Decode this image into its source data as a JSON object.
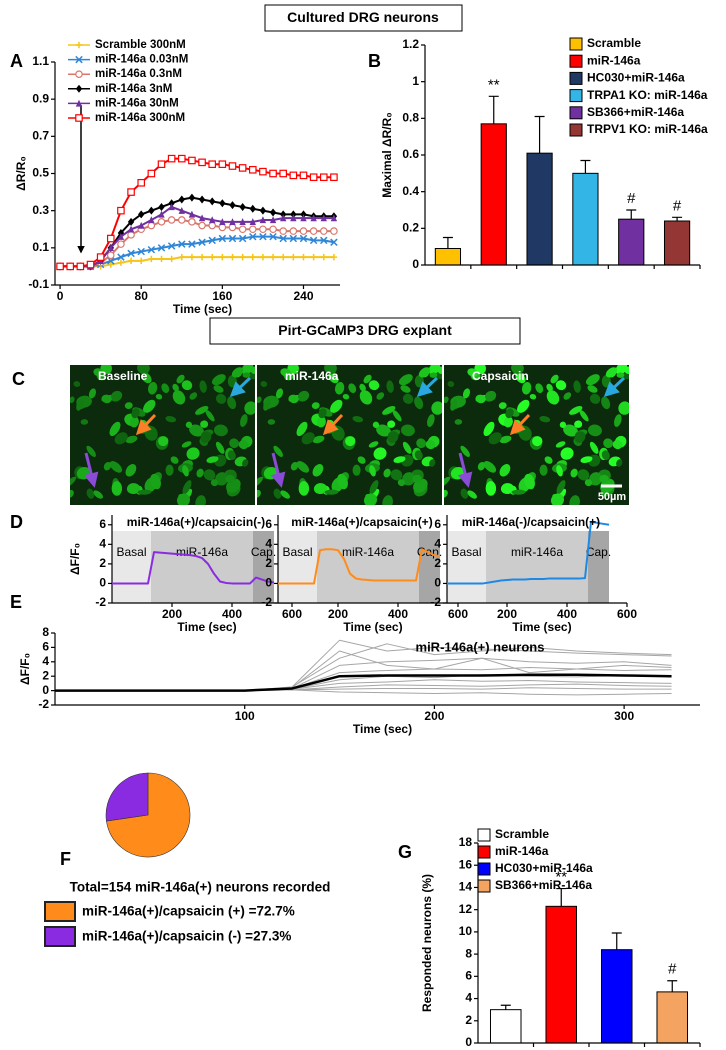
{
  "headers": [
    "Cultured DRG neurons",
    "Pirt-GCaMP3 DRG explant"
  ],
  "images": {
    "label": "C",
    "panels": [
      "Baseline",
      "miR-146a",
      "Capsaicin"
    ],
    "scale_bar": "50µm"
  },
  "chart_data": [
    {
      "type": "line",
      "label": "A",
      "xlabel": "Time (sec)",
      "ylabel": "ΔR/R₀",
      "xlim": [
        -5,
        276
      ],
      "xticks": [
        0,
        80,
        160,
        240
      ],
      "ylim": [
        -0.1,
        1.1
      ],
      "yticks": [
        -0.1,
        0.1,
        0.3,
        0.5,
        0.7,
        0.9,
        1.1
      ],
      "legend": "upper left",
      "x": [
        0,
        10,
        20,
        30,
        40,
        50,
        60,
        70,
        80,
        90,
        100,
        110,
        120,
        130,
        140,
        150,
        160,
        170,
        180,
        190,
        200,
        210,
        220,
        230,
        240,
        250,
        260,
        270
      ],
      "series": [
        {
          "name": "Scramble 300nM",
          "color": "#f5c518",
          "marker": "plus",
          "values": [
            0,
            0,
            0,
            0,
            0,
            0.01,
            0.02,
            0.03,
            0.03,
            0.04,
            0.04,
            0.04,
            0.05,
            0.05,
            0.05,
            0.05,
            0.05,
            0.05,
            0.05,
            0.05,
            0.05,
            0.05,
            0.05,
            0.05,
            0.05,
            0.05,
            0.05,
            0.05
          ]
        },
        {
          "name": "miR-146a 0.03nM",
          "color": "#2f86d6",
          "marker": "x",
          "values": [
            0,
            0,
            0,
            0,
            0.01,
            0.03,
            0.05,
            0.07,
            0.08,
            0.09,
            0.1,
            0.11,
            0.12,
            0.12,
            0.13,
            0.14,
            0.15,
            0.15,
            0.15,
            0.16,
            0.16,
            0.16,
            0.15,
            0.15,
            0.15,
            0.14,
            0.14,
            0.13
          ]
        },
        {
          "name": "miR-146a 0.3nM",
          "color": "#d9776c",
          "marker": "circle",
          "values": [
            0,
            0,
            0,
            0,
            0.02,
            0.06,
            0.12,
            0.17,
            0.2,
            0.22,
            0.24,
            0.25,
            0.25,
            0.24,
            0.22,
            0.22,
            0.21,
            0.21,
            0.2,
            0.2,
            0.2,
            0.2,
            0.19,
            0.19,
            0.19,
            0.19,
            0.19,
            0.19
          ]
        },
        {
          "name": "miR-146a 3nM",
          "color": "#000000",
          "marker": "diamond",
          "values": [
            0,
            0,
            0,
            0,
            0.03,
            0.1,
            0.18,
            0.24,
            0.28,
            0.3,
            0.32,
            0.34,
            0.36,
            0.37,
            0.36,
            0.35,
            0.34,
            0.33,
            0.32,
            0.31,
            0.3,
            0.29,
            0.28,
            0.28,
            0.28,
            0.27,
            0.27,
            0.27
          ]
        },
        {
          "name": "miR-146a 30nM",
          "color": "#7030a0",
          "marker": "triangle",
          "values": [
            0,
            0,
            0,
            0,
            0.03,
            0.1,
            0.16,
            0.2,
            0.22,
            0.25,
            0.28,
            0.32,
            0.3,
            0.28,
            0.26,
            0.25,
            0.24,
            0.24,
            0.24,
            0.24,
            0.25,
            0.25,
            0.26,
            0.26,
            0.26,
            0.26,
            0.26,
            0.26
          ]
        },
        {
          "name": "miR-146a 300nM",
          "color": "#ff0000",
          "marker": "square",
          "values": [
            0,
            0,
            0,
            0.01,
            0.05,
            0.15,
            0.3,
            0.4,
            0.45,
            0.5,
            0.55,
            0.58,
            0.58,
            0.57,
            0.56,
            0.55,
            0.55,
            0.54,
            0.53,
            0.52,
            0.51,
            0.5,
            0.5,
            0.49,
            0.49,
            0.48,
            0.48,
            0.48
          ]
        }
      ]
    },
    {
      "type": "bar",
      "label": "B",
      "ylabel": "Maximal ΔR/R₀",
      "categories": [
        "Scramble",
        "miR-146a",
        "HC030+miR-146a",
        "TRPA1 KO: miR-146a",
        "SB366+miR-146a",
        "TRPV1 KO: miR-146a"
      ],
      "values": [
        0.09,
        0.77,
        0.61,
        0.5,
        0.25,
        0.24
      ],
      "errors": [
        0.06,
        0.15,
        0.2,
        0.07,
        0.05,
        0.02
      ],
      "colors": [
        "#ffc000",
        "#ff0000",
        "#1f3864",
        "#33b5e5",
        "#7030a0",
        "#943634"
      ],
      "ylim": [
        0,
        1.2
      ],
      "yticks": [
        0,
        0.2,
        0.4,
        0.6,
        0.8,
        1,
        1.2
      ],
      "legend": "upper right",
      "annotations": [
        {
          "at": "miR-146a",
          "text": "**"
        },
        {
          "at": "SB366+miR-146a",
          "text": "#"
        },
        {
          "at": "TRPV1 KO: miR-146a",
          "text": "#"
        }
      ]
    },
    {
      "type": "line",
      "label": "D",
      "title": "miR-146a(+)/capsaicin(-)",
      "xlabel": "Time (sec)",
      "ylabel": "ΔF/F₀",
      "xlim": [
        0,
        600
      ],
      "xticks": [
        200,
        400,
        600
      ],
      "ylim": [
        -2,
        7
      ],
      "yticks": [
        -2,
        0,
        2,
        4,
        6
      ],
      "regions": [
        {
          "label": "Basal",
          "start": 0,
          "end": 130,
          "color": "#e8e8e8"
        },
        {
          "label": "miR-146a",
          "start": 130,
          "end": 470,
          "color": "#cccccc"
        },
        {
          "label": "Cap.",
          "start": 470,
          "end": 540,
          "color": "#a6a6a6"
        }
      ],
      "x": [
        0,
        20,
        40,
        60,
        80,
        100,
        120,
        140,
        160,
        180,
        200,
        220,
        240,
        260,
        280,
        300,
        320,
        340,
        360,
        380,
        400,
        420,
        440,
        460,
        480,
        500,
        520,
        540
      ],
      "series": [
        {
          "color": "#8a2be2",
          "values": [
            0,
            0,
            0,
            0,
            0,
            0,
            0,
            3.2,
            3.15,
            3.1,
            3.05,
            3.0,
            2.95,
            2.9,
            2.8,
            2.6,
            2.0,
            1.0,
            0.2,
            0.05,
            0,
            0,
            0,
            0,
            0.6,
            0.4,
            0.2,
            0.1
          ]
        }
      ]
    },
    {
      "type": "line",
      "title": "miR-146a(+)/capsaicin(+)",
      "xlabel": "Time (sec)",
      "xlim": [
        0,
        600
      ],
      "xticks": [
        200,
        400,
        600
      ],
      "ylim": [
        -2,
        7
      ],
      "yticks": [
        -2,
        0,
        2,
        4,
        6
      ],
      "regions": [
        {
          "label": "Basal",
          "start": 0,
          "end": 130,
          "color": "#e8e8e8"
        },
        {
          "label": "miR-146a",
          "start": 130,
          "end": 470,
          "color": "#cccccc"
        },
        {
          "label": "Cap.",
          "start": 470,
          "end": 540,
          "color": "#a6a6a6"
        }
      ],
      "x": [
        0,
        20,
        40,
        60,
        80,
        100,
        120,
        140,
        160,
        180,
        200,
        220,
        240,
        260,
        280,
        300,
        320,
        340,
        360,
        380,
        400,
        420,
        440,
        460,
        480,
        500,
        520,
        540
      ],
      "series": [
        {
          "color": "#ff8c1a",
          "values": [
            0,
            0,
            0,
            0,
            0,
            0,
            0,
            3.4,
            3.5,
            3.5,
            3.4,
            2.5,
            1.0,
            0.5,
            0.4,
            0.35,
            0.3,
            0.3,
            0.3,
            0.3,
            0.3,
            0.3,
            0.3,
            0.3,
            3.5,
            3.2,
            2.9,
            2.8
          ]
        }
      ]
    },
    {
      "type": "line",
      "title": "miR-146a(-)/capsaicin(+)",
      "xlabel": "Time (sec)",
      "xlim": [
        0,
        600
      ],
      "xticks": [
        200,
        400,
        600
      ],
      "ylim": [
        -2,
        7
      ],
      "yticks": [
        -2,
        0,
        2,
        4,
        6
      ],
      "regions": [
        {
          "label": "Basal",
          "start": 0,
          "end": 130,
          "color": "#e8e8e8"
        },
        {
          "label": "miR-146a",
          "start": 130,
          "end": 470,
          "color": "#cccccc"
        },
        {
          "label": "Cap.",
          "start": 470,
          "end": 540,
          "color": "#a6a6a6"
        }
      ],
      "x": [
        0,
        20,
        40,
        60,
        80,
        100,
        120,
        140,
        160,
        180,
        200,
        220,
        240,
        260,
        280,
        300,
        320,
        340,
        360,
        380,
        400,
        420,
        440,
        460,
        480,
        500,
        520,
        540
      ],
      "series": [
        {
          "color": "#1e88e5",
          "values": [
            0,
            0,
            0,
            0,
            0,
            0,
            0,
            0.1,
            0.2,
            0.3,
            0.35,
            0.4,
            0.4,
            0.4,
            0.45,
            0.45,
            0.45,
            0.5,
            0.5,
            0.5,
            0.5,
            0.5,
            0.5,
            0.55,
            6.3,
            6.2,
            6.1,
            6.0
          ]
        }
      ]
    },
    {
      "type": "line",
      "label": "E",
      "annotation": "miR-146a(+) neurons",
      "xlabel": "Time (sec)",
      "ylabel": "ΔF/F₀",
      "xlim": [
        0,
        340
      ],
      "xticks": [
        100,
        200,
        300
      ],
      "ylim": [
        -2,
        8
      ],
      "yticks": [
        -2,
        0,
        2,
        4,
        6,
        8
      ],
      "x": [
        0,
        25,
        50,
        75,
        100,
        125,
        150,
        175,
        200,
        225,
        250,
        275,
        300,
        325
      ],
      "series": [
        {
          "color": "#a6a6a6",
          "values": [
            0,
            0,
            0,
            0,
            0,
            0.5,
            7.0,
            5.5,
            6.0,
            5.8,
            5.5,
            5.2,
            5.0,
            4.8
          ]
        },
        {
          "color": "#a6a6a6",
          "values": [
            0,
            0,
            0,
            0,
            0,
            0.5,
            4.5,
            6.5,
            5.0,
            5.5,
            6.0,
            5.5,
            5.2,
            5.0
          ]
        },
        {
          "color": "#a6a6a6",
          "values": [
            0,
            0,
            0,
            0,
            0,
            0.3,
            3.5,
            4.0,
            4.2,
            4.5,
            4.0,
            3.8,
            4.0,
            3.5
          ]
        },
        {
          "color": "#a6a6a6",
          "values": [
            0,
            0,
            0,
            0,
            0,
            0.3,
            2.5,
            2.8,
            3.0,
            2.9,
            3.2,
            3.0,
            2.8,
            2.9
          ]
        },
        {
          "color": "#a6a6a6",
          "values": [
            0,
            0,
            0,
            0,
            0,
            0.2,
            1.5,
            2.0,
            1.8,
            2.2,
            2.0,
            1.9,
            2.1,
            2.0
          ]
        },
        {
          "color": "#a6a6a6",
          "values": [
            0,
            0,
            0,
            0,
            0,
            0.2,
            1.0,
            1.2,
            1.5,
            1.3,
            1.4,
            1.2,
            1.1,
            1.0
          ]
        },
        {
          "color": "#a6a6a6",
          "values": [
            0,
            0,
            0,
            0,
            0,
            0.1,
            0.5,
            0.8,
            0.7,
            0.6,
            0.8,
            0.9,
            0.7,
            0.6
          ]
        },
        {
          "color": "#a6a6a6",
          "values": [
            0,
            0,
            0,
            0,
            0,
            0.1,
            0.2,
            0.3,
            0.3,
            0.2,
            0.4,
            0.3,
            0.2,
            0.2
          ]
        },
        {
          "color": "#a6a6a6",
          "values": [
            0,
            0,
            0,
            0,
            0,
            0.4,
            5.5,
            3.5,
            3.0,
            4.5,
            2.5,
            3.0,
            3.5,
            3.2
          ]
        },
        {
          "color": "#a6a6a6",
          "values": [
            0,
            0,
            0,
            0,
            0,
            0.1,
            -0.2,
            -0.3,
            -0.4,
            -0.3,
            -0.5,
            -0.6,
            -0.5,
            -0.4
          ]
        },
        {
          "color": "#000000",
          "values": [
            0,
            0,
            0,
            0,
            0,
            0.3,
            2.0,
            2.1,
            2.1,
            2.1,
            2.2,
            2.2,
            2.1,
            2.0
          ]
        }
      ]
    },
    {
      "type": "pie",
      "label": "F",
      "title": "Total=154 miR-146a(+) neurons recorded",
      "categories": [
        "miR-146a(+)/capsaicin (+) =72.7%",
        "miR-146a(+)/capsaicin (-) =27.3%"
      ],
      "values": [
        72.7,
        27.3
      ],
      "colors": [
        "#ff8c1a",
        "#8a2be2"
      ]
    },
    {
      "type": "bar",
      "label": "G",
      "ylabel": "Responded neurons (%)",
      "categories": [
        "Scramble",
        "miR-146a",
        "HC030+miR-146a",
        "SB366+miR-146a"
      ],
      "values": [
        3.0,
        12.3,
        8.4,
        4.6
      ],
      "errors": [
        0.4,
        1.6,
        1.5,
        1.0
      ],
      "colors": [
        "#ffffff",
        "#ff0000",
        "#0000ff",
        "#f4a460"
      ],
      "ylim": [
        0,
        18
      ],
      "yticks": [
        0,
        2,
        4,
        6,
        8,
        10,
        12,
        14,
        16,
        18
      ],
      "legend": "upper left",
      "annotations": [
        {
          "at": "miR-146a",
          "text": "**"
        },
        {
          "at": "SB366+miR-146a",
          "text": "#"
        }
      ]
    }
  ]
}
